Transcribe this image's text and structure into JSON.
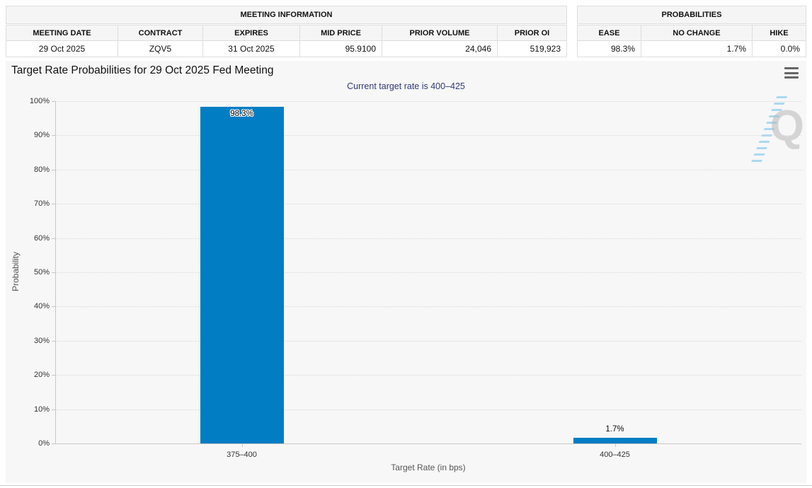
{
  "meeting_information": {
    "title": "MEETING INFORMATION",
    "columns": [
      "MEETING DATE",
      "CONTRACT",
      "EXPIRES",
      "MID PRICE",
      "PRIOR VOLUME",
      "PRIOR OI"
    ],
    "values": [
      "29 Oct 2025",
      "ZQV5",
      "31 Oct 2025",
      "95.9100",
      "24,046",
      "519,923"
    ]
  },
  "probabilities_summary": {
    "title": "PROBABILITIES",
    "columns": [
      "EASE",
      "NO CHANGE",
      "HIKE"
    ],
    "values": [
      "98.3%",
      "1.7%",
      "0.0%"
    ]
  },
  "chart": {
    "title": "Target Rate Probabilities for 29 Oct 2025 Fed Meeting",
    "subtitle": "Current target rate is 400–425",
    "menu_icon": "hamburger-menu-icon",
    "watermark_letter": "Q"
  },
  "chart_data": {
    "type": "bar",
    "title": "Target Rate Probabilities for 29 Oct 2025 Fed Meeting",
    "subtitle": "Current target rate is 400–425",
    "categories": [
      "375–400",
      "400–425"
    ],
    "values": [
      98.3,
      1.7
    ],
    "value_labels": [
      "98.3%",
      "1.7%"
    ],
    "xlabel": "Target Rate (in bps)",
    "ylabel": "Probability",
    "ylim": [
      0,
      100
    ],
    "ytick_step": 10,
    "ytick_labels": [
      "0%",
      "10%",
      "20%",
      "30%",
      "40%",
      "50%",
      "60%",
      "70%",
      "80%",
      "90%",
      "100%"
    ],
    "grid": "dotted-horizontal",
    "legend": "none",
    "bar_color": "#007dc3"
  },
  "colors": {
    "bar": "#007dc3",
    "subtitle_text": "#2f3a78",
    "panel_background": "#f7f7f7",
    "table_header_background": "#f5f5f5",
    "table_border": "#dddddd"
  }
}
